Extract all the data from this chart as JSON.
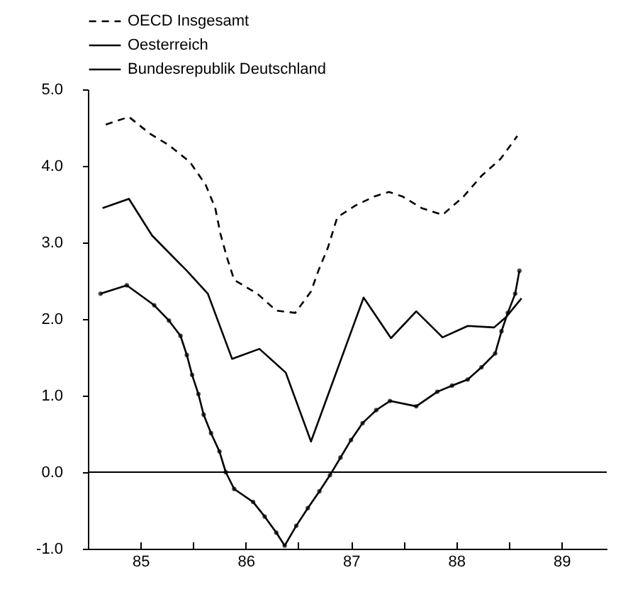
{
  "chart_data": {
    "type": "line",
    "xlim": [
      84.5,
      89.43
    ],
    "ylim": [
      -1,
      5
    ],
    "xticks": [
      85,
      {
        "value": 85.5,
        "label": null
      },
      86,
      {
        "value": 86.5,
        "label": null
      },
      87,
      {
        "value": 87.5,
        "label": null
      },
      88,
      {
        "value": 88.5,
        "label": null
      },
      89
    ],
    "yticks": [
      {
        "value": -1,
        "label": "-1.0"
      },
      {
        "value": 0,
        "label": "0.0"
      },
      {
        "value": 1,
        "label": "1.0"
      },
      {
        "value": 2,
        "label": "2.0"
      },
      {
        "value": 3,
        "label": "3.0"
      },
      {
        "value": 4,
        "label": "4.0"
      },
      {
        "value": 5,
        "label": "5.0"
      }
    ],
    "legend": "top left",
    "grid": false,
    "ref_lines": [
      {
        "axis": "y",
        "value": 0
      }
    ],
    "series": [
      {
        "name": "OECD Insgesamt",
        "color": "#000000",
        "line_style": "dashed",
        "marker": "none",
        "x": [
          84.67,
          84.89,
          85.09,
          85.27,
          85.47,
          85.62,
          85.71,
          85.76,
          85.82,
          85.89,
          86.11,
          86.29,
          86.47,
          86.62,
          86.69,
          86.78,
          86.87,
          87.04,
          87.22,
          87.36,
          87.49,
          87.67,
          87.87,
          88.07,
          88.24,
          88.42,
          88.58
        ],
        "values": [
          4.54,
          4.64,
          4.42,
          4.27,
          4.05,
          3.75,
          3.45,
          3.11,
          2.81,
          2.51,
          2.33,
          2.11,
          2.08,
          2.36,
          2.63,
          2.93,
          3.33,
          3.48,
          3.6,
          3.66,
          3.6,
          3.45,
          3.36,
          3.6,
          3.87,
          4.09,
          4.39
        ]
      },
      {
        "name": "Oesterreich",
        "color": "#000000",
        "line_style": "solid",
        "marker": "none",
        "x": [
          84.64,
          84.89,
          85.11,
          85.44,
          85.64,
          85.87,
          86.13,
          86.38,
          86.62,
          87.12,
          87.38,
          87.62,
          87.87,
          88.11,
          88.36,
          88.47,
          88.62
        ],
        "values": [
          3.45,
          3.57,
          3.09,
          2.63,
          2.33,
          1.48,
          1.61,
          1.3,
          0.4,
          2.28,
          1.75,
          2.1,
          1.76,
          1.91,
          1.89,
          2.02,
          2.27
        ]
      },
      {
        "name": "Bundesrepublik Deutschland",
        "color": "#000000",
        "line_style": "solid",
        "marker": "circle",
        "x": [
          84.62,
          84.87,
          85.13,
          85.27,
          85.38,
          85.44,
          85.49,
          85.55,
          85.6,
          85.67,
          85.75,
          85.81,
          85.89,
          86.07,
          86.18,
          86.29,
          86.37,
          86.48,
          86.59,
          86.7,
          86.8,
          86.9,
          87,
          87.11,
          87.24,
          87.37,
          87.62,
          87.82,
          87.96,
          88.11,
          88.24,
          88.37,
          88.43,
          88.49,
          88.56,
          88.6
        ],
        "values": [
          2.33,
          2.44,
          2.18,
          1.98,
          1.78,
          1.53,
          1.27,
          1.02,
          0.75,
          0.51,
          0.27,
          0,
          -0.22,
          -0.39,
          -0.58,
          -0.79,
          -0.96,
          -0.7,
          -0.47,
          -0.25,
          -0.04,
          0.19,
          0.42,
          0.64,
          0.81,
          0.93,
          0.86,
          1.05,
          1.13,
          1.21,
          1.37,
          1.55,
          1.84,
          2.08,
          2.33,
          2.63
        ]
      }
    ]
  }
}
